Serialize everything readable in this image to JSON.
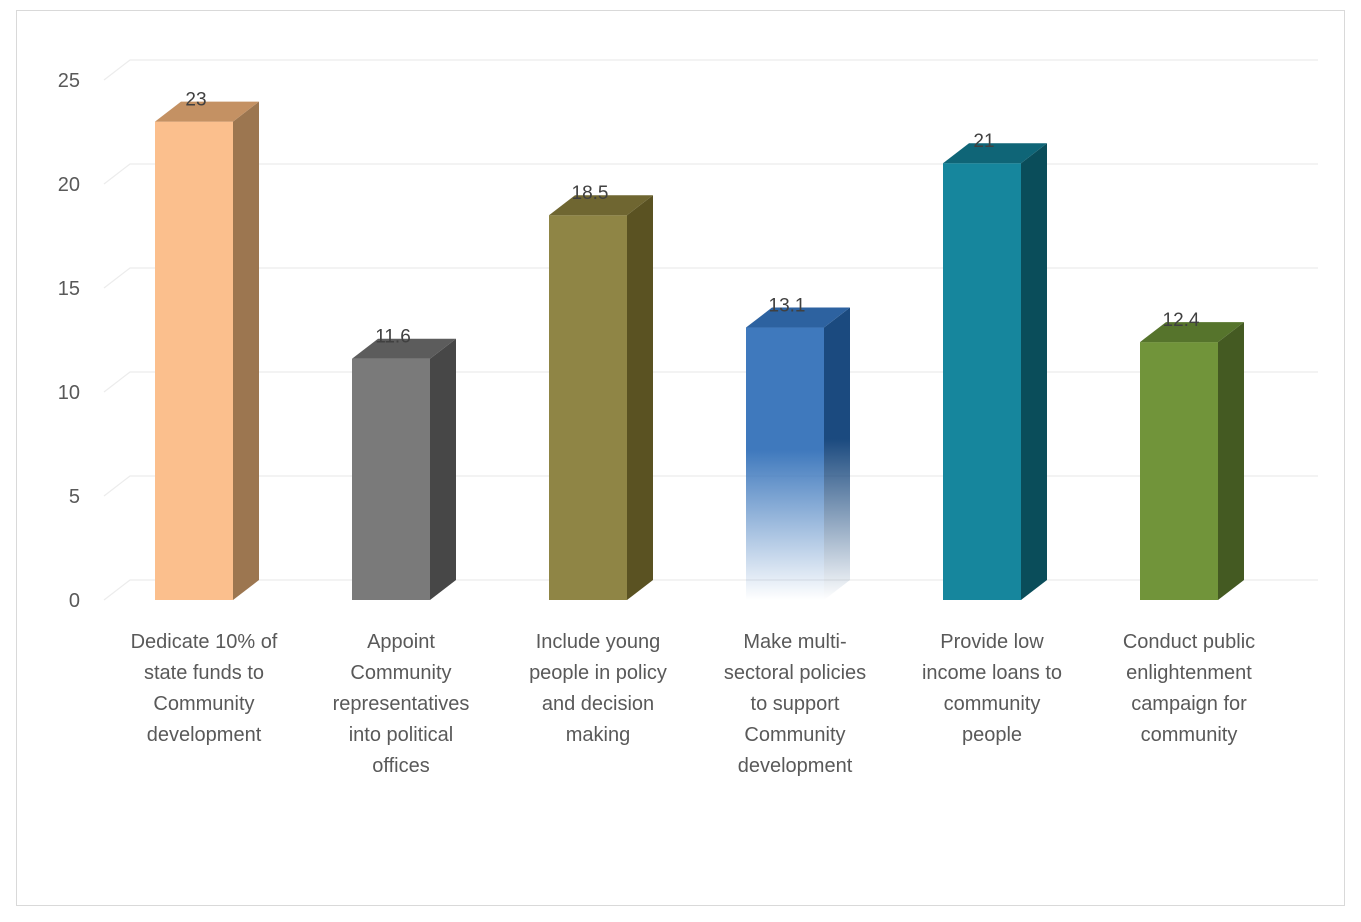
{
  "chart_data": {
    "type": "bar",
    "style": "3d-column",
    "categories": [
      "Dedicate 10% of state funds to Community development",
      "Appoint Community representatives into political offices",
      "Include young people in policy and decision making",
      "Make multi-sectoral policies to support Community development",
      "Provide low income loans to community people",
      "Conduct public enlightenment campaign for community"
    ],
    "category_lines": [
      [
        "Dedicate 10% of",
        "state funds to",
        "Community",
        "development"
      ],
      [
        "Appoint",
        "Community",
        "representatives",
        "into political",
        "offices"
      ],
      [
        "Include young",
        "people in policy",
        "and decision",
        "making"
      ],
      [
        "Make multi-",
        "sectoral policies",
        "to support",
        "Community",
        "development"
      ],
      [
        "Provide low",
        "income loans to",
        "community",
        "people"
      ],
      [
        "Conduct public",
        "enlightenment",
        "campaign for",
        "community"
      ]
    ],
    "values": [
      23,
      11.6,
      18.5,
      13.1,
      21,
      12.4
    ],
    "data_labels": [
      "23",
      "11.6",
      "18.5",
      "13.1",
      "21",
      "12.4"
    ],
    "colors": [
      {
        "front": "#fbbf8d",
        "side": "#9c7650",
        "top": "#c49163"
      },
      {
        "front": "#7a7a7a",
        "side": "#474747",
        "top": "#5c5c5c"
      },
      {
        "front": "#8f8545",
        "side": "#5a5222",
        "top": "#6f6631"
      },
      {
        "front": "#3f79bd",
        "side": "#1b4a7f",
        "top": "#2d62a0",
        "gradient": true
      },
      {
        "front": "#16869d",
        "side": "#0a4d5a",
        "top": "#0f6577"
      },
      {
        "front": "#71943a",
        "side": "#445a22",
        "top": "#56742c"
      }
    ],
    "y_ticks": [
      "0",
      "5",
      "10",
      "15",
      "20",
      "25"
    ],
    "ylim": [
      0,
      25
    ],
    "grid": true,
    "title": "",
    "xlabel": "",
    "ylabel": ""
  }
}
